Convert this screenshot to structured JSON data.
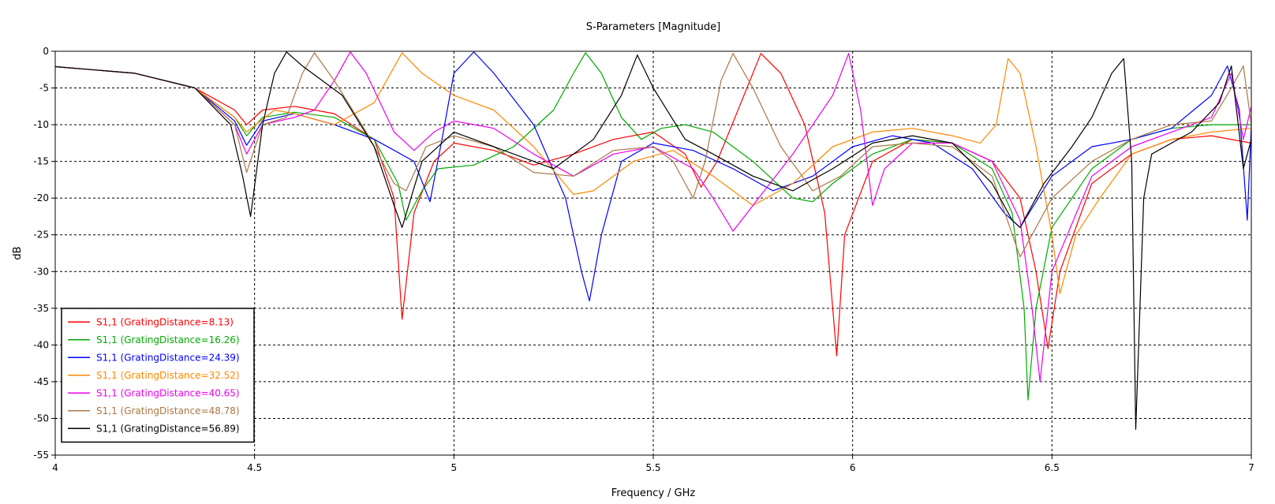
{
  "chart_data": {
    "type": "line",
    "title": "S-Parameters [Magnitude]",
    "xlabel": "Frequency / GHz",
    "ylabel": "dB",
    "xlim": [
      4,
      7
    ],
    "ylim": [
      -55,
      0
    ],
    "xticks": [
      4,
      4.5,
      5,
      5.5,
      6,
      6.5,
      7
    ],
    "xtick_labels": [
      "4",
      "4.5",
      "5",
      "5.5",
      "6",
      "6.5",
      "7"
    ],
    "yticks": [
      0,
      -5,
      -10,
      -15,
      -20,
      -25,
      -30,
      -35,
      -40,
      -45,
      -50,
      -55
    ],
    "ytick_labels": [
      "0",
      "-5",
      "-10",
      "-15",
      "-20",
      "-25",
      "-30",
      "-35",
      "-40",
      "-45",
      "-50",
      "-55"
    ],
    "grid": true,
    "legend_position": "bottom-left",
    "series": [
      {
        "name": "S1,1 (GratingDistance=8.13)",
        "color": "#ff0000",
        "points": [
          [
            4,
            -2.1
          ],
          [
            4.2,
            -3
          ],
          [
            4.35,
            -5
          ],
          [
            4.45,
            -8
          ],
          [
            4.48,
            -10
          ],
          [
            4.52,
            -8
          ],
          [
            4.6,
            -7.5
          ],
          [
            4.7,
            -8.5
          ],
          [
            4.8,
            -12
          ],
          [
            4.85,
            -20
          ],
          [
            4.87,
            -36.5
          ],
          [
            4.9,
            -22
          ],
          [
            4.95,
            -15
          ],
          [
            5.0,
            -12.5
          ],
          [
            5.1,
            -13.5
          ],
          [
            5.2,
            -15.5
          ],
          [
            5.3,
            -14
          ],
          [
            5.4,
            -12
          ],
          [
            5.5,
            -11
          ],
          [
            5.58,
            -14
          ],
          [
            5.62,
            -18.5
          ],
          [
            5.66,
            -15
          ],
          [
            5.72,
            -7
          ],
          [
            5.77,
            -0.3
          ],
          [
            5.82,
            -3
          ],
          [
            5.88,
            -10
          ],
          [
            5.93,
            -22
          ],
          [
            5.96,
            -41.5
          ],
          [
            5.98,
            -25
          ],
          [
            6.05,
            -15
          ],
          [
            6.15,
            -12
          ],
          [
            6.25,
            -12.5
          ],
          [
            6.35,
            -15
          ],
          [
            6.42,
            -20
          ],
          [
            6.46,
            -30
          ],
          [
            6.49,
            -40.5
          ],
          [
            6.52,
            -30
          ],
          [
            6.6,
            -18
          ],
          [
            6.7,
            -14
          ],
          [
            6.8,
            -12
          ],
          [
            6.9,
            -11.5
          ],
          [
            7.0,
            -12.5
          ]
        ]
      },
      {
        "name": "S1,1 (GratingDistance=16.26)",
        "color": "#00aa00",
        "points": [
          [
            4,
            -2.1
          ],
          [
            4.2,
            -3
          ],
          [
            4.35,
            -5
          ],
          [
            4.45,
            -9
          ],
          [
            4.48,
            -11.5
          ],
          [
            4.52,
            -9
          ],
          [
            4.6,
            -8.3
          ],
          [
            4.7,
            -9
          ],
          [
            4.8,
            -12
          ],
          [
            4.86,
            -18
          ],
          [
            4.88,
            -23
          ],
          [
            4.92,
            -19
          ],
          [
            4.96,
            -16
          ],
          [
            5.05,
            -15.5
          ],
          [
            5.15,
            -13
          ],
          [
            5.25,
            -8
          ],
          [
            5.3,
            -3
          ],
          [
            5.33,
            -0.2
          ],
          [
            5.37,
            -3
          ],
          [
            5.42,
            -9
          ],
          [
            5.47,
            -12
          ],
          [
            5.52,
            -10.5
          ],
          [
            5.58,
            -10
          ],
          [
            5.65,
            -11
          ],
          [
            5.75,
            -15
          ],
          [
            5.85,
            -20
          ],
          [
            5.9,
            -20.5
          ],
          [
            5.95,
            -18
          ],
          [
            6.05,
            -14
          ],
          [
            6.15,
            -12
          ],
          [
            6.25,
            -12.5
          ],
          [
            6.35,
            -16
          ],
          [
            6.4,
            -22
          ],
          [
            6.43,
            -35
          ],
          [
            6.44,
            -47.5
          ],
          [
            6.46,
            -35
          ],
          [
            6.5,
            -24
          ],
          [
            6.6,
            -16
          ],
          [
            6.7,
            -12
          ],
          [
            6.8,
            -10.5
          ],
          [
            6.9,
            -10
          ],
          [
            7.0,
            -10
          ]
        ]
      },
      {
        "name": "S1,1 (GratingDistance=24.39)",
        "color": "#0000ff",
        "points": [
          [
            4,
            -2.1
          ],
          [
            4.2,
            -3
          ],
          [
            4.35,
            -5
          ],
          [
            4.45,
            -9.5
          ],
          [
            4.48,
            -12.8
          ],
          [
            4.52,
            -9.5
          ],
          [
            4.6,
            -8.5
          ],
          [
            4.7,
            -10
          ],
          [
            4.8,
            -12
          ],
          [
            4.9,
            -15
          ],
          [
            4.94,
            -20.5
          ],
          [
            4.97,
            -12
          ],
          [
            5.0,
            -3
          ],
          [
            5.05,
            -0.1
          ],
          [
            5.1,
            -3
          ],
          [
            5.2,
            -10
          ],
          [
            5.28,
            -20
          ],
          [
            5.32,
            -30
          ],
          [
            5.34,
            -34
          ],
          [
            5.37,
            -25
          ],
          [
            5.42,
            -15
          ],
          [
            5.5,
            -12.5
          ],
          [
            5.6,
            -13.5
          ],
          [
            5.7,
            -16
          ],
          [
            5.8,
            -19
          ],
          [
            5.9,
            -17
          ],
          [
            6.0,
            -13
          ],
          [
            6.1,
            -11.5
          ],
          [
            6.2,
            -12.5
          ],
          [
            6.3,
            -16
          ],
          [
            6.38,
            -22
          ],
          [
            6.42,
            -24
          ],
          [
            6.5,
            -17
          ],
          [
            6.6,
            -13
          ],
          [
            6.7,
            -12
          ],
          [
            6.8,
            -10.5
          ],
          [
            6.9,
            -6
          ],
          [
            6.94,
            -2
          ],
          [
            6.97,
            -8
          ],
          [
            6.99,
            -23
          ],
          [
            7.0,
            -10
          ]
        ]
      },
      {
        "name": "S1,1 (GratingDistance=32.52)",
        "color": "#ff8800",
        "points": [
          [
            4,
            -2.1
          ],
          [
            4.2,
            -3
          ],
          [
            4.35,
            -5
          ],
          [
            4.45,
            -9
          ],
          [
            4.48,
            -11
          ],
          [
            4.55,
            -8
          ],
          [
            4.6,
            -8.5
          ],
          [
            4.7,
            -10
          ],
          [
            4.8,
            -7
          ],
          [
            4.87,
            -0.2
          ],
          [
            4.92,
            -3
          ],
          [
            5.0,
            -6
          ],
          [
            5.1,
            -8
          ],
          [
            5.2,
            -13
          ],
          [
            5.3,
            -19.5
          ],
          [
            5.35,
            -19
          ],
          [
            5.45,
            -15
          ],
          [
            5.55,
            -13.5
          ],
          [
            5.65,
            -17
          ],
          [
            5.75,
            -21
          ],
          [
            5.85,
            -18
          ],
          [
            5.95,
            -13
          ],
          [
            6.05,
            -11
          ],
          [
            6.15,
            -10.5
          ],
          [
            6.25,
            -11.5
          ],
          [
            6.32,
            -12.5
          ],
          [
            6.36,
            -10
          ],
          [
            6.39,
            -1
          ],
          [
            6.42,
            -3
          ],
          [
            6.46,
            -13
          ],
          [
            6.5,
            -25
          ],
          [
            6.52,
            -33
          ],
          [
            6.56,
            -25
          ],
          [
            6.62,
            -20
          ],
          [
            6.7,
            -14
          ],
          [
            6.8,
            -12
          ],
          [
            6.9,
            -11
          ],
          [
            7.0,
            -10.5
          ]
        ]
      },
      {
        "name": "S1,1 (GratingDistance=40.65)",
        "color": "#ee00ee",
        "points": [
          [
            4,
            -2.1
          ],
          [
            4.2,
            -3
          ],
          [
            4.35,
            -5
          ],
          [
            4.45,
            -10
          ],
          [
            4.48,
            -14
          ],
          [
            4.52,
            -10
          ],
          [
            4.6,
            -9
          ],
          [
            4.65,
            -8
          ],
          [
            4.7,
            -4
          ],
          [
            4.74,
            -0.1
          ],
          [
            4.78,
            -3
          ],
          [
            4.85,
            -11
          ],
          [
            4.9,
            -13.5
          ],
          [
            4.95,
            -11
          ],
          [
            5.0,
            -9.5
          ],
          [
            5.1,
            -10.5
          ],
          [
            5.2,
            -14
          ],
          [
            5.3,
            -17
          ],
          [
            5.4,
            -14
          ],
          [
            5.5,
            -13
          ],
          [
            5.6,
            -16
          ],
          [
            5.65,
            -20
          ],
          [
            5.7,
            -24.5
          ],
          [
            5.75,
            -21
          ],
          [
            5.85,
            -14
          ],
          [
            5.95,
            -6
          ],
          [
            5.99,
            -0.3
          ],
          [
            6.02,
            -8
          ],
          [
            6.05,
            -21
          ],
          [
            6.08,
            -16
          ],
          [
            6.15,
            -12.5
          ],
          [
            6.25,
            -12.5
          ],
          [
            6.35,
            -15
          ],
          [
            6.42,
            -23
          ],
          [
            6.45,
            -35
          ],
          [
            6.47,
            -45
          ],
          [
            6.5,
            -30
          ],
          [
            6.6,
            -17
          ],
          [
            6.7,
            -13
          ],
          [
            6.8,
            -11
          ],
          [
            6.9,
            -9
          ],
          [
            6.95,
            -3
          ],
          [
            6.98,
            -12
          ],
          [
            7.0,
            -7.5
          ]
        ]
      },
      {
        "name": "S1,1 (GratingDistance=48.78)",
        "color": "#aa7744",
        "points": [
          [
            4,
            -2.1
          ],
          [
            4.2,
            -3
          ],
          [
            4.35,
            -5
          ],
          [
            4.45,
            -10
          ],
          [
            4.48,
            -16.5
          ],
          [
            4.52,
            -10
          ],
          [
            4.58,
            -9
          ],
          [
            4.62,
            -3
          ],
          [
            4.65,
            -0.2
          ],
          [
            4.7,
            -4
          ],
          [
            4.78,
            -11
          ],
          [
            4.85,
            -18
          ],
          [
            4.88,
            -19
          ],
          [
            4.93,
            -13
          ],
          [
            5.0,
            -11.5
          ],
          [
            5.1,
            -13
          ],
          [
            5.2,
            -16.5
          ],
          [
            5.3,
            -17
          ],
          [
            5.4,
            -13.5
          ],
          [
            5.5,
            -13
          ],
          [
            5.55,
            -15
          ],
          [
            5.6,
            -20
          ],
          [
            5.63,
            -15
          ],
          [
            5.67,
            -4
          ],
          [
            5.7,
            -0.3
          ],
          [
            5.75,
            -5
          ],
          [
            5.82,
            -13
          ],
          [
            5.9,
            -19
          ],
          [
            5.97,
            -17
          ],
          [
            6.05,
            -13
          ],
          [
            6.15,
            -12.5
          ],
          [
            6.25,
            -13
          ],
          [
            6.35,
            -17
          ],
          [
            6.42,
            -28
          ],
          [
            6.45,
            -25
          ],
          [
            6.5,
            -20
          ],
          [
            6.6,
            -15
          ],
          [
            6.7,
            -12
          ],
          [
            6.8,
            -10
          ],
          [
            6.9,
            -9.5
          ],
          [
            6.95,
            -5
          ],
          [
            6.98,
            -2
          ],
          [
            7.0,
            -10
          ]
        ]
      },
      {
        "name": "S1,1 (GratingDistance=56.89)",
        "color": "#000000",
        "points": [
          [
            4,
            -2.1
          ],
          [
            4.2,
            -3
          ],
          [
            4.35,
            -5
          ],
          [
            4.44,
            -10
          ],
          [
            4.47,
            -17
          ],
          [
            4.49,
            -22.5
          ],
          [
            4.52,
            -10
          ],
          [
            4.55,
            -3
          ],
          [
            4.58,
            -0.1
          ],
          [
            4.62,
            -2
          ],
          [
            4.72,
            -6
          ],
          [
            4.8,
            -13
          ],
          [
            4.85,
            -21
          ],
          [
            4.87,
            -24
          ],
          [
            4.92,
            -15
          ],
          [
            5.0,
            -11
          ],
          [
            5.1,
            -13
          ],
          [
            5.2,
            -15
          ],
          [
            5.25,
            -16
          ],
          [
            5.35,
            -12
          ],
          [
            5.42,
            -6
          ],
          [
            5.46,
            -0.5
          ],
          [
            5.5,
            -5
          ],
          [
            5.58,
            -12
          ],
          [
            5.65,
            -14
          ],
          [
            5.75,
            -17
          ],
          [
            5.85,
            -19
          ],
          [
            5.95,
            -16
          ],
          [
            6.05,
            -12.5
          ],
          [
            6.15,
            -11.5
          ],
          [
            6.25,
            -12.5
          ],
          [
            6.35,
            -18
          ],
          [
            6.4,
            -23
          ],
          [
            6.42,
            -24
          ],
          [
            6.48,
            -18
          ],
          [
            6.55,
            -13
          ],
          [
            6.6,
            -9
          ],
          [
            6.65,
            -3
          ],
          [
            6.68,
            -1
          ],
          [
            6.7,
            -15
          ],
          [
            6.71,
            -51.5
          ],
          [
            6.73,
            -20
          ],
          [
            6.75,
            -14
          ],
          [
            6.85,
            -11
          ],
          [
            6.92,
            -7
          ],
          [
            6.95,
            -2
          ],
          [
            6.98,
            -16
          ],
          [
            7.0,
            -12
          ]
        ]
      }
    ]
  }
}
